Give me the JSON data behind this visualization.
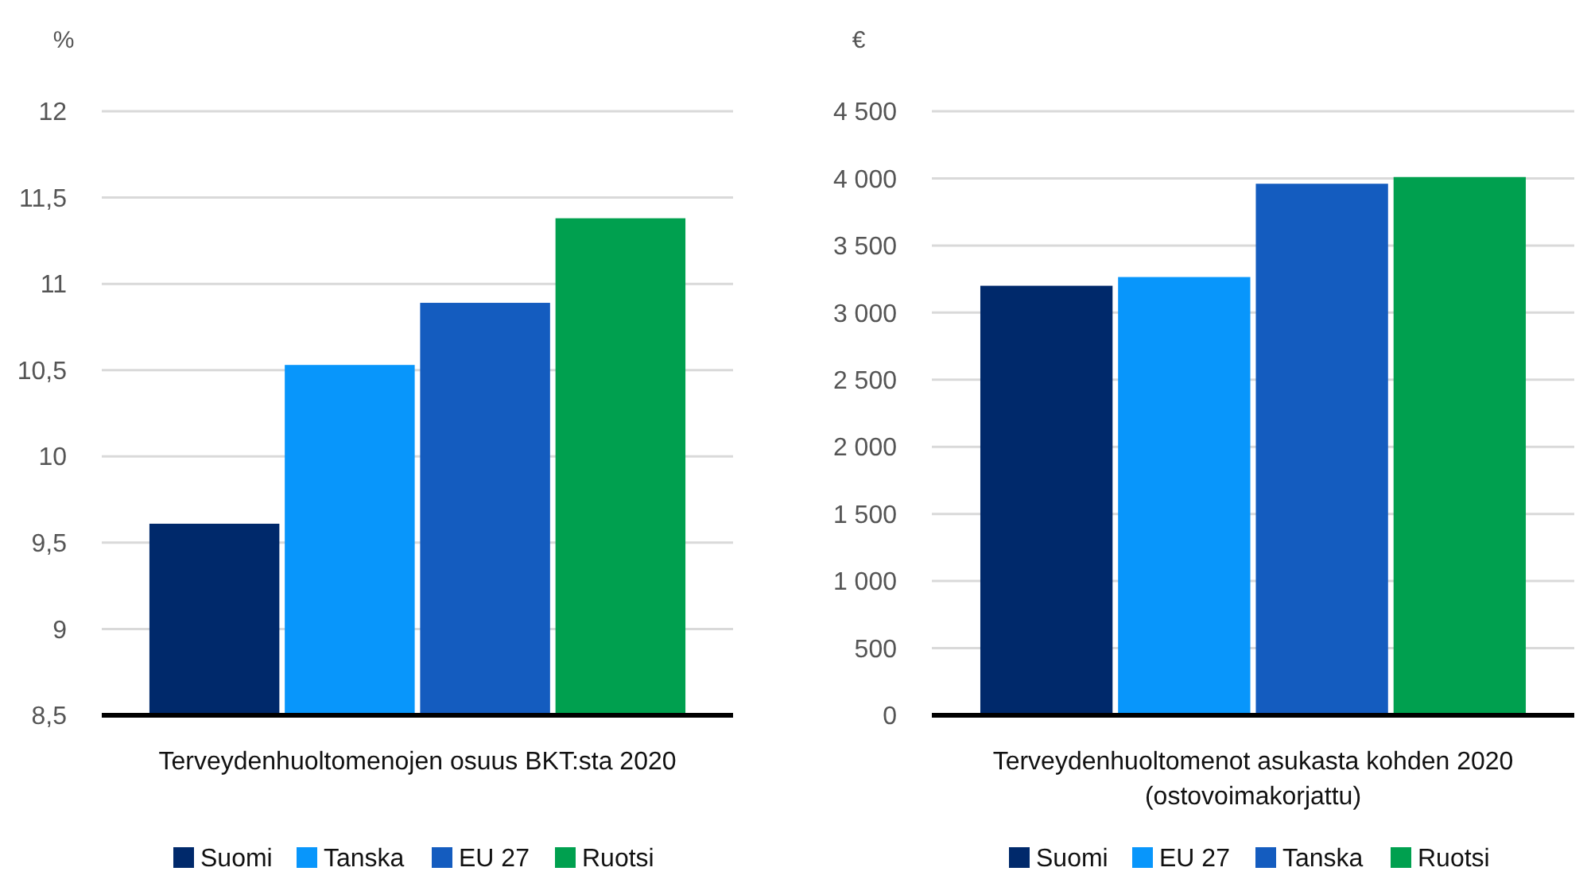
{
  "chart_data": [
    {
      "type": "bar",
      "xlabel": "Terveydenhuoltomenojen osuus BKT:sta 2020",
      "ylabel": "%",
      "categories": [
        null
      ],
      "ylim": [
        8.5,
        12
      ],
      "yticks": [
        {
          "value": 8.5,
          "label": "8,5"
        },
        9,
        {
          "value": 9.5,
          "label": "9,5"
        },
        10,
        {
          "value": 10.5,
          "label": "10,5"
        },
        11,
        {
          "value": 11.5,
          "label": "11,5"
        },
        12
      ],
      "grid": "y",
      "legend": "bottom",
      "series": [
        {
          "name": "Suomi",
          "color": "#00296b",
          "values": [
            9.61
          ]
        },
        {
          "name": "Tanska",
          "color": "#0896fb",
          "values": [
            10.53
          ]
        },
        {
          "name": "EU 27",
          "color": "#145cbf",
          "values": [
            10.89
          ]
        },
        {
          "name": "Ruotsi",
          "color": "#00a04f",
          "values": [
            11.38
          ]
        }
      ]
    },
    {
      "type": "bar",
      "xlabel": "Terveydenhuoltomenot asukasta kohden 2020\n(ostovoimakorjattu)",
      "ylabel": "€",
      "categories": [
        null
      ],
      "ylim": [
        0,
        4500
      ],
      "yticks": [
        0,
        500,
        {
          "value": 1000,
          "label": "1 000"
        },
        {
          "value": 1500,
          "label": "1 500"
        },
        {
          "value": 2000,
          "label": "2 000"
        },
        {
          "value": 2500,
          "label": "2 500"
        },
        {
          "value": 3000,
          "label": "3 000"
        },
        {
          "value": 3500,
          "label": "3 500"
        },
        {
          "value": 4000,
          "label": "4 000"
        },
        {
          "value": 4500,
          "label": "4 500"
        }
      ],
      "grid": "y",
      "legend": "bottom",
      "series": [
        {
          "name": "Suomi",
          "color": "#00296b",
          "values": [
            3200
          ]
        },
        {
          "name": "EU 27",
          "color": "#0896fb",
          "values": [
            3265
          ]
        },
        {
          "name": "Tanska",
          "color": "#145cbf",
          "values": [
            3960
          ]
        },
        {
          "name": "Ruotsi",
          "color": "#00a04f",
          "values": [
            4010
          ]
        }
      ]
    }
  ]
}
